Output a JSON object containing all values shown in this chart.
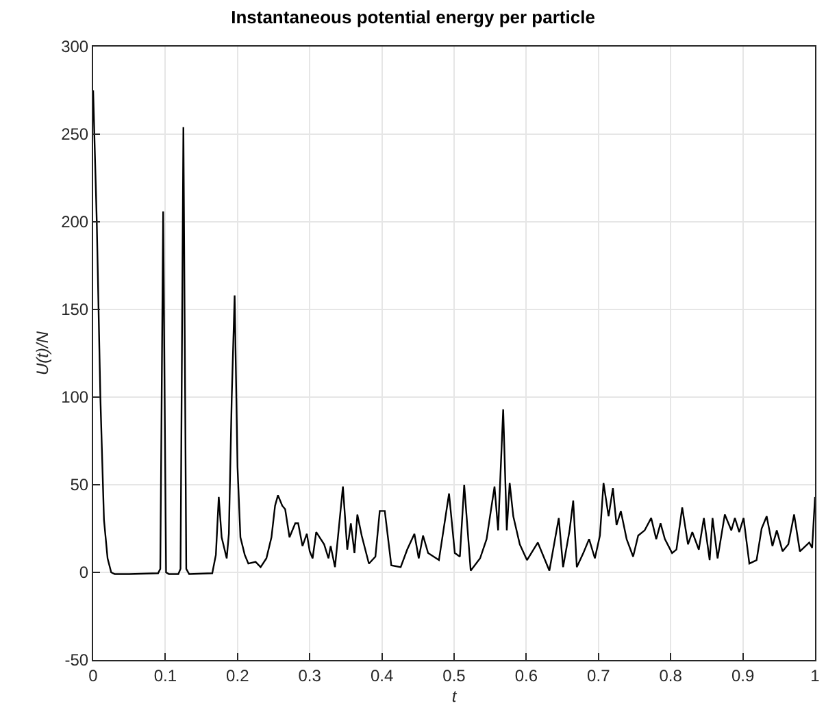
{
  "chart_data": {
    "type": "line",
    "title": "Instantaneous potential energy per particle",
    "xlabel": "t",
    "ylabel": "U(t)/N",
    "x": [
      0,
      0.005,
      0.01,
      0.015,
      0.02,
      0.025,
      0.03,
      0.05,
      0.09,
      0.093,
      0.097,
      0.101,
      0.105,
      0.118,
      0.121,
      0.125,
      0.129,
      0.133,
      0.165,
      0.17,
      0.174,
      0.178,
      0.185,
      0.188,
      0.192,
      0.196,
      0.2,
      0.204,
      0.21,
      0.215,
      0.225,
      0.232,
      0.24,
      0.247,
      0.252,
      0.256,
      0.262,
      0.266,
      0.272,
      0.28,
      0.284,
      0.29,
      0.296,
      0.3,
      0.304,
      0.309,
      0.32,
      0.326,
      0.329,
      0.335,
      0.346,
      0.352,
      0.357,
      0.362,
      0.366,
      0.372,
      0.382,
      0.391,
      0.397,
      0.404,
      0.413,
      0.426,
      0.435,
      0.445,
      0.451,
      0.457,
      0.464,
      0.479,
      0.493,
      0.501,
      0.508,
      0.514,
      0.523,
      0.536,
      0.545,
      0.556,
      0.561,
      0.568,
      0.573,
      0.577,
      0.582,
      0.591,
      0.601,
      0.616,
      0.632,
      0.645,
      0.651,
      0.66,
      0.665,
      0.67,
      0.679,
      0.687,
      0.695,
      0.702,
      0.707,
      0.714,
      0.72,
      0.725,
      0.731,
      0.739,
      0.748,
      0.755,
      0.764,
      0.773,
      0.78,
      0.786,
      0.792,
      0.802,
      0.808,
      0.816,
      0.824,
      0.83,
      0.839,
      0.846,
      0.854,
      0.858,
      0.865,
      0.875,
      0.884,
      0.889,
      0.895,
      0.901,
      0.909,
      0.919,
      0.926,
      0.933,
      0.941,
      0.947,
      0.955,
      0.963,
      0.971,
      0.979,
      0.992,
      0.996,
      1
    ],
    "series": [
      {
        "color": "#000000",
        "values": [
          275,
          200,
          100,
          30,
          8,
          0,
          -1,
          -1,
          -0.5,
          2,
          206,
          0,
          -1,
          -1,
          2,
          254,
          2,
          -1,
          -0.5,
          10,
          43,
          20,
          8,
          22,
          100,
          158,
          60,
          20,
          10,
          5,
          6,
          3,
          8,
          20,
          38,
          44,
          38,
          36,
          20,
          28,
          28,
          15,
          22,
          12,
          8,
          23,
          16,
          8,
          15,
          3,
          49,
          13,
          28,
          11,
          33,
          21,
          5,
          9,
          35,
          35,
          4,
          3,
          13,
          22,
          8,
          21,
          11,
          7,
          45,
          11,
          9,
          50,
          1,
          8,
          19,
          49,
          24,
          93,
          24,
          51,
          32,
          16,
          7,
          17,
          1,
          31,
          3,
          24,
          41,
          3,
          11,
          19,
          8,
          21,
          51,
          32,
          48,
          27,
          35,
          19,
          9,
          21,
          24,
          31,
          19,
          28,
          19,
          11,
          13,
          37,
          16,
          23,
          13,
          31,
          7,
          31,
          8,
          33,
          24,
          31,
          23,
          31,
          5,
          7,
          25,
          32,
          15,
          24,
          12,
          16,
          33,
          12,
          17,
          14,
          43
        ]
      }
    ],
    "xlim": [
      0,
      1
    ],
    "xticks": [
      0,
      0.1,
      0.2,
      0.3,
      0.4,
      0.5,
      0.6,
      0.7,
      0.8,
      0.9,
      1
    ],
    "ylim": [
      -50,
      300
    ],
    "yticks": [
      -50,
      0,
      50,
      100,
      150,
      200,
      250,
      300
    ],
    "grid": true,
    "marker": "none",
    "line_style": "solid"
  }
}
